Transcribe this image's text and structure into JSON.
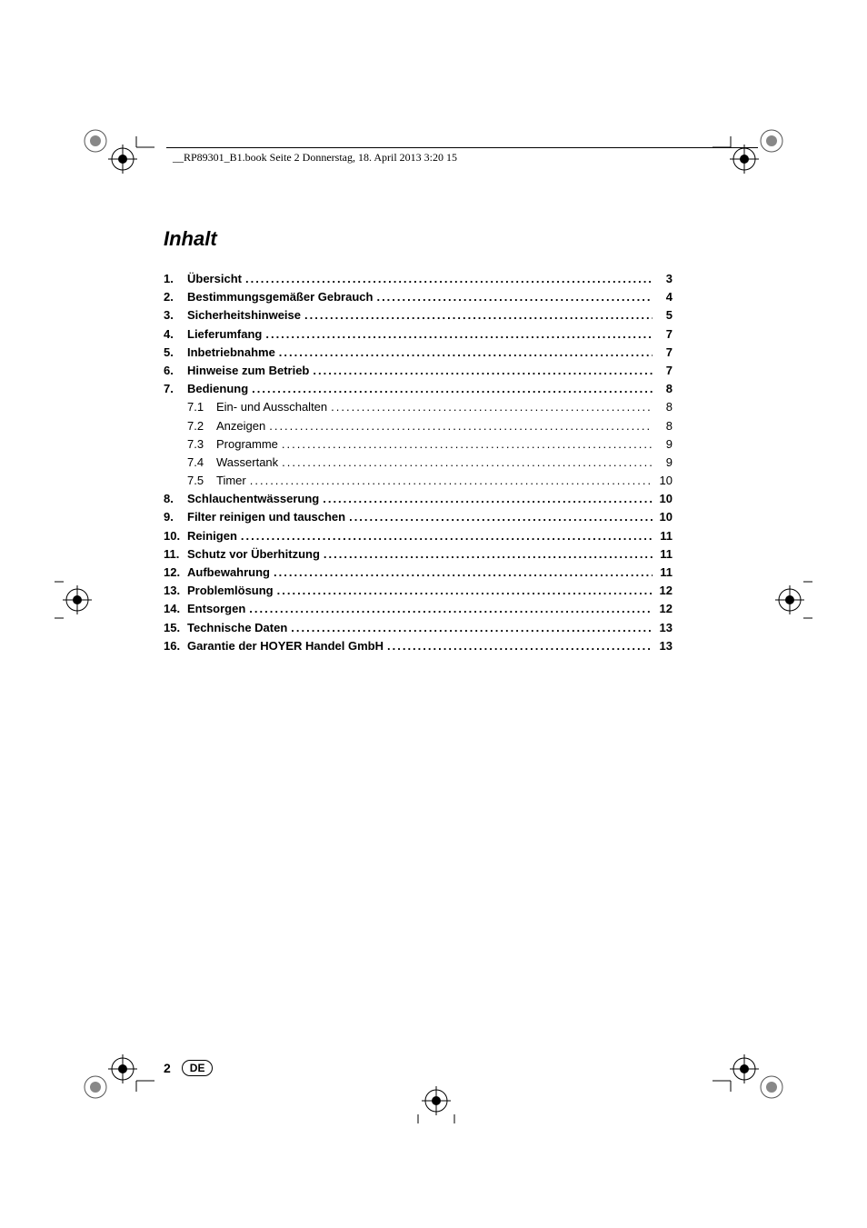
{
  "header_text": "__RP89301_B1.book  Seite 2  Donnerstag, 18. April 2013  3:20 15",
  "title": "Inhalt",
  "toc": [
    {
      "num": "1.",
      "label": "Übersicht",
      "page": "3",
      "bold": true
    },
    {
      "num": "2.",
      "label": "Bestimmungsgemäßer Gebrauch",
      "page": "4",
      "bold": true
    },
    {
      "num": "3.",
      "label": "Sicherheitshinweise",
      "page": "5",
      "bold": true
    },
    {
      "num": "4.",
      "label": "Lieferumfang",
      "page": "7",
      "bold": true
    },
    {
      "num": "5.",
      "label": "Inbetriebnahme",
      "page": "7",
      "bold": true
    },
    {
      "num": "6.",
      "label": "Hinweise zum Betrieb",
      "page": "7",
      "bold": true
    },
    {
      "num": "7.",
      "label": "Bedienung",
      "page": "8",
      "bold": true
    },
    {
      "num": "7.1",
      "label": "Ein- und Ausschalten",
      "page": "8",
      "bold": false,
      "sub": true
    },
    {
      "num": "7.2",
      "label": "Anzeigen",
      "page": "8",
      "bold": false,
      "sub": true
    },
    {
      "num": "7.3",
      "label": "Programme",
      "page": "9",
      "bold": false,
      "sub": true
    },
    {
      "num": "7.4",
      "label": "Wassertank",
      "page": "9",
      "bold": false,
      "sub": true
    },
    {
      "num": "7.5",
      "label": "Timer",
      "page": "10",
      "bold": false,
      "sub": true
    },
    {
      "num": "8.",
      "label": "Schlauchentwässerung",
      "page": "10",
      "bold": true
    },
    {
      "num": "9.",
      "label": "Filter reinigen und tauschen",
      "page": "10",
      "bold": true
    },
    {
      "num": "10.",
      "label": "Reinigen",
      "page": "11",
      "bold": true
    },
    {
      "num": "11.",
      "label": "Schutz vor Überhitzung",
      "page": "11",
      "bold": true
    },
    {
      "num": "12.",
      "label": "Aufbewahrung",
      "page": "11",
      "bold": true
    },
    {
      "num": "13.",
      "label": "Problemlösung",
      "page": "12",
      "bold": true
    },
    {
      "num": "14.",
      "label": "Entsorgen",
      "page": "12",
      "bold": true
    },
    {
      "num": "15.",
      "label": "Technische Daten",
      "page": "13",
      "bold": true
    },
    {
      "num": "16.",
      "label": "Garantie der HOYER Handel GmbH",
      "page": "13",
      "bold": true
    }
  ],
  "footer": {
    "page_number": "2",
    "lang_badge": "DE"
  },
  "colors": {
    "text": "#000000",
    "background": "#ffffff"
  }
}
